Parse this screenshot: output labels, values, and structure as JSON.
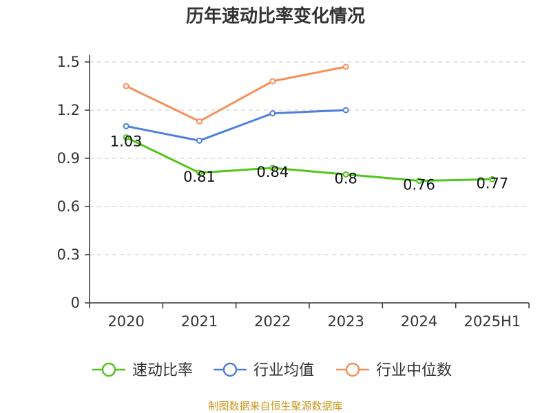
{
  "chart_data": {
    "type": "line",
    "title": "历年速动比率变化情况",
    "categories": [
      "2020",
      "2021",
      "2022",
      "2023",
      "2024",
      "2025H1"
    ],
    "yticks": [
      "0",
      "0.3",
      "0.6",
      "0.9",
      "1.2",
      "1.5"
    ],
    "ylim": [
      0,
      1.5
    ],
    "grid": true,
    "legend_position": "bottom",
    "series": [
      {
        "name": "速动比率",
        "color": "#52c41a",
        "values": [
          1.03,
          0.81,
          0.84,
          0.8,
          0.76,
          0.77
        ],
        "labels": [
          "1.03",
          "0.81",
          "0.84",
          "0.8",
          "0.76",
          "0.77"
        ]
      },
      {
        "name": "行业均值",
        "color": "#4e7fd9",
        "values": [
          1.1,
          1.01,
          1.18,
          1.2,
          null,
          null
        ]
      },
      {
        "name": "行业中位数",
        "color": "#f5905a",
        "values": [
          1.35,
          1.13,
          1.38,
          1.47,
          null,
          null
        ]
      }
    ],
    "source": "制图数据来自恒生聚源数据库"
  }
}
